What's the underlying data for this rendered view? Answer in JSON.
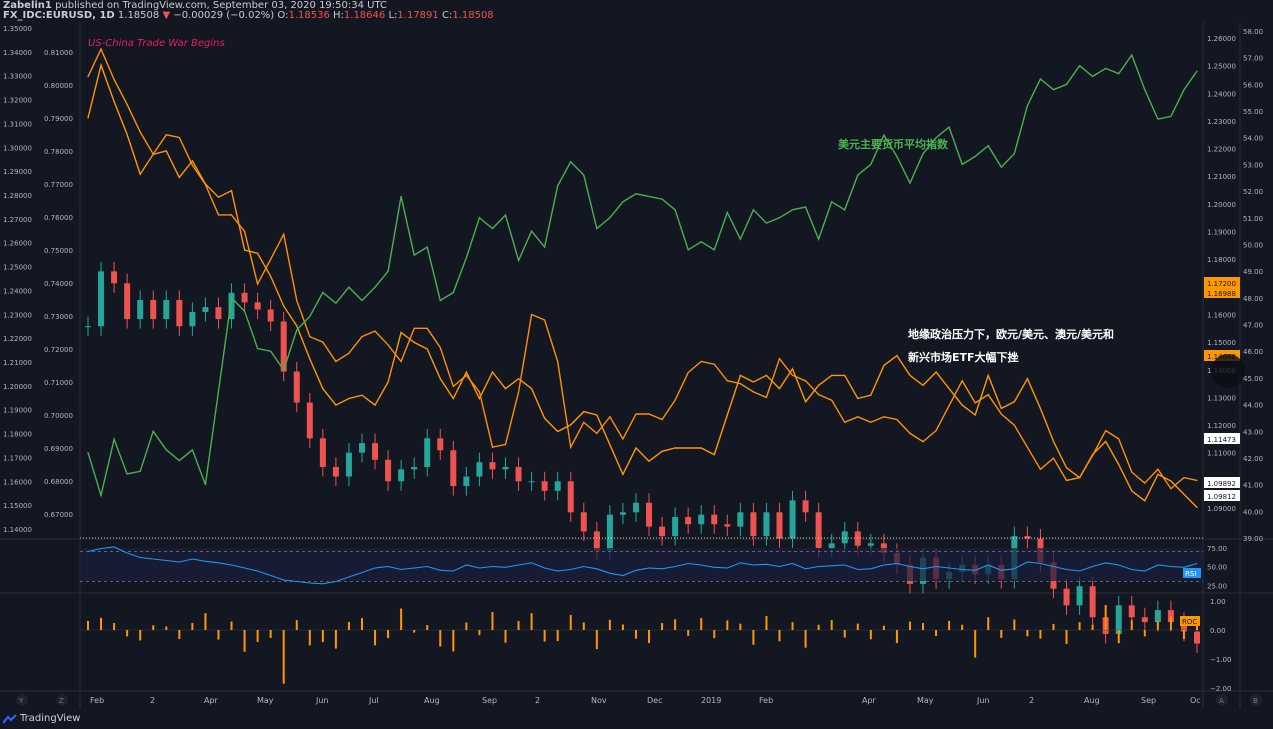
{
  "header": {
    "publisher": "Zabelin1",
    "published_text": "published on TradingView.com, September 03, 2020 19:50:34 UTC",
    "symbol": "FX_IDC:EURUSD, 1D",
    "last": "1.18508",
    "change": "−0.00029 (−0.02%)",
    "o_label": "O:",
    "o": "1.18536",
    "h_label": "H:",
    "h": "1.18646",
    "l_label": "L:",
    "l": "1.17891",
    "c_label": "C:",
    "c": "1.18508"
  },
  "footer": {
    "brand": "TradingView",
    "left_buttons": [
      "Y",
      "Z"
    ],
    "right_buttons": [
      "A",
      "B"
    ]
  },
  "colors": {
    "background": "#131722",
    "up": "#26a69a",
    "down": "#ef5350",
    "dxy": "#4caf50",
    "orange": "#ff9800",
    "rsi": "#2196f3",
    "roc": "#ff9800",
    "annotation_red": "#e91e63",
    "annotation_green": "#4caf50"
  },
  "annotations": {
    "trade_war": "US-China Trade War Begins",
    "dxy_label": "美元主要货币平均指数",
    "pressure_line1": "地缘政治压力下，欧元/美元、澳元/美元和",
    "pressure_line2": "新兴市场ETF大幅下挫"
  },
  "chart_data": [
    {
      "type": "line",
      "title": "",
      "left_axis_1_ticks": [
        "1.35000",
        "1.34000",
        "1.33000",
        "1.32000",
        "1.31000",
        "1.30000",
        "1.29000",
        "1.28000",
        "1.27000",
        "1.26000",
        "1.25000",
        "1.24000",
        "1.23000",
        "1.22000",
        "1.21000",
        "1.20000",
        "1.19000",
        "1.18000",
        "1.17000",
        "1.16000",
        "1.15000",
        "1.14000"
      ],
      "left_axis_2_ticks": [
        "0.81000",
        "0.80000",
        "0.79000",
        "0.78000",
        "0.77000",
        "0.76000",
        "0.75000",
        "0.74000",
        "0.73000",
        "0.72000",
        "0.71000",
        "0.70000",
        "0.69000",
        "0.68000",
        "0.67000"
      ],
      "right_axis_1_ticks": [
        "1.26000",
        "1.25000",
        "1.24000",
        "1.23000",
        "1.22000",
        "1.21000",
        "1.20000",
        "1.19000",
        "1.18000",
        "1.17000",
        "1.16000",
        "1.15000",
        "1.14000",
        "1.13000",
        "1.12000",
        "1.11000",
        "1.10000",
        "1.09000"
      ],
      "right_axis_2_ticks": [
        "58.00",
        "57.00",
        "56.00",
        "55.00",
        "54.00",
        "53.00",
        "52.00",
        "51.00",
        "50.00",
        "49.00",
        "48.00",
        "47.00",
        "46.00",
        "45.00",
        "44.00",
        "43.00",
        "42.00",
        "41.00",
        "40.00",
        "39.00"
      ],
      "price_labels": [
        "1.17200",
        "1.16988",
        "1.14648",
        "1.11473",
        "1.09892",
        "1.09812"
      ],
      "x_tick_labels": [
        "Feb",
        "2",
        "Apr",
        "May",
        "Jun",
        "Jul",
        "Aug",
        "Sep",
        "2",
        "Nov",
        "Dec",
        "2019",
        "Feb",
        "Apr",
        "May",
        "Jun",
        "2",
        "Aug",
        "Sep",
        "Oc"
      ],
      "series": [
        {
          "name": "EURUSD",
          "style": "candles",
          "axis": "left 1.14–1.35",
          "points": [
            1.225,
            1.248,
            1.243,
            1.228,
            1.236,
            1.228,
            1.236,
            1.225,
            1.231,
            1.233,
            1.228,
            1.239,
            1.235,
            1.232,
            1.227,
            1.206,
            1.193,
            1.178,
            1.166,
            1.162,
            1.172,
            1.176,
            1.169,
            1.16,
            1.165,
            1.166,
            1.178,
            1.173,
            1.158,
            1.162,
            1.168,
            1.165,
            1.166,
            1.16,
            1.16,
            1.156,
            1.16,
            1.147,
            1.139,
            1.131,
            1.146,
            1.147,
            1.151,
            1.141,
            1.137,
            1.145,
            1.142,
            1.146,
            1.142,
            1.141,
            1.147,
            1.137,
            1.147,
            1.136,
            1.152,
            1.147,
            1.132,
            1.134,
            1.139,
            1.133,
            1.134,
            1.13,
            1.125,
            1.117,
            1.128,
            1.119,
            1.122,
            1.125,
            1.121,
            1.125,
            1.119,
            1.137,
            1.136,
            1.126,
            1.115,
            1.108,
            1.116,
            1.103,
            1.096,
            1.108,
            1.103,
            1.101,
            1.106,
            1.101,
            1.097,
            1.092
          ]
        },
        {
          "name": "",
          "style": "line",
          "color": "orange",
          "axis": "left 0.67–0.81",
          "points": [
            0.79,
            0.806,
            0.795,
            0.785,
            0.773,
            0.779,
            0.78,
            0.772,
            0.777,
            0.77,
            0.766,
            0.768,
            0.75,
            0.749,
            0.742,
            0.733,
            0.727,
            0.717,
            0.708,
            0.703,
            0.705,
            0.706,
            0.703,
            0.71,
            0.725,
            0.722,
            0.72,
            0.711,
            0.705,
            0.713,
            0.705,
            0.713,
            0.708,
            0.711,
            0.708,
            0.699,
            0.695,
            0.697,
            0.701,
            0.7,
            0.691,
            0.682,
            0.69,
            0.686,
            0.689,
            0.69,
            0.69,
            0.69,
            0.688,
            0.7,
            0.712,
            0.71,
            0.712,
            0.708,
            0.714,
            0.704,
            0.709,
            0.712,
            0.712,
            0.705,
            0.706,
            0.715,
            0.718,
            0.712,
            0.709,
            0.713,
            0.708,
            0.703,
            0.7,
            0.712,
            0.702,
            0.704,
            0.711,
            0.702,
            0.692,
            0.684,
            0.681,
            0.688,
            0.692,
            0.685,
            0.677,
            0.674,
            0.682,
            0.68,
            0.676,
            0.672
          ]
        },
        {
          "name": "",
          "style": "line",
          "color": "orange",
          "axis": "right 1.09–1.26",
          "points": [
            1.246,
            1.256,
            1.245,
            1.236,
            1.226,
            1.218,
            1.225,
            1.224,
            1.214,
            1.207,
            1.196,
            1.196,
            1.19,
            1.171,
            1.18,
            1.189,
            1.165,
            1.152,
            1.15,
            1.143,
            1.146,
            1.152,
            1.154,
            1.149,
            1.143,
            1.155,
            1.155,
            1.148,
            1.134,
            1.138,
            1.132,
            1.112,
            1.113,
            1.132,
            1.16,
            1.158,
            1.143,
            1.112,
            1.121,
            1.117,
            1.123,
            1.115,
            1.124,
            1.124,
            1.122,
            1.129,
            1.139,
            1.143,
            1.142,
            1.136,
            1.135,
            1.132,
            1.13,
            1.144,
            1.138,
            1.136,
            1.131,
            1.129,
            1.121,
            1.123,
            1.121,
            1.123,
            1.122,
            1.117,
            1.114,
            1.118,
            1.127,
            1.136,
            1.128,
            1.131,
            1.124,
            1.12,
            1.112,
            1.104,
            1.108,
            1.1,
            1.101,
            1.109,
            1.118,
            1.115,
            1.103,
            1.099,
            1.104,
            1.097,
            1.101,
            1.1
          ]
        },
        {
          "name": "",
          "style": "line",
          "color": "green",
          "axis": "right 39–58",
          "points": [
            42.2,
            40.6,
            42.7,
            41.4,
            41.5,
            43.0,
            42.3,
            41.9,
            42.3,
            41.0,
            44.5,
            48.0,
            47.5,
            46.1,
            46.0,
            45.3,
            46.8,
            47.3,
            48.2,
            47.8,
            48.4,
            47.9,
            48.4,
            49.0,
            51.8,
            49.6,
            49.9,
            47.9,
            48.2,
            49.5,
            51.0,
            50.6,
            51.1,
            49.4,
            50.5,
            49.9,
            52.2,
            53.1,
            52.6,
            50.6,
            51.0,
            51.6,
            51.9,
            51.8,
            51.7,
            51.3,
            49.8,
            50.1,
            49.8,
            51.2,
            50.2,
            51.3,
            50.8,
            51.0,
            51.3,
            51.4,
            50.2,
            51.6,
            51.3,
            52.6,
            53.0,
            54.1,
            53.3,
            52.3,
            53.4,
            54.0,
            54.4,
            53.0,
            53.3,
            53.7,
            52.9,
            53.4,
            55.2,
            56.2,
            55.8,
            56.0,
            56.7,
            56.3,
            56.6,
            56.4,
            57.1,
            55.8,
            54.7,
            54.8,
            55.8,
            56.5
          ]
        },
        {
          "name": "RSI",
          "panel": "rsi",
          "axis_ticks": [
            "75.00",
            "50.00",
            "25.00"
          ],
          "band": [
            30,
            70
          ],
          "points": [
            70,
            74,
            76,
            68,
            62,
            60,
            58,
            56,
            60,
            57,
            55,
            52,
            48,
            44,
            38,
            32,
            30,
            28,
            27,
            30,
            36,
            42,
            48,
            50,
            46,
            48,
            50,
            45,
            44,
            52,
            48,
            50,
            49,
            52,
            55,
            48,
            44,
            46,
            50,
            47,
            41,
            38,
            45,
            48,
            47,
            50,
            54,
            52,
            49,
            48,
            55,
            52,
            53,
            50,
            54,
            47,
            50,
            51,
            52,
            46,
            47,
            52,
            54,
            50,
            47,
            50,
            48,
            46,
            45,
            52,
            45,
            47,
            56,
            54,
            50,
            46,
            44,
            50,
            55,
            52,
            46,
            44,
            52,
            50,
            49,
            54
          ]
        },
        {
          "name": "ROC",
          "panel": "roc",
          "axis_ticks": [
            "1.00",
            "0.00",
            "−1.00",
            "−2.00"
          ],
          "points": [
            0.31,
            0.42,
            0.24,
            -0.22,
            -0.36,
            0.16,
            0.12,
            -0.31,
            0.24,
            0.58,
            -0.33,
            0.29,
            -0.75,
            -0.41,
            -0.27,
            -1.85,
            0.34,
            -0.53,
            -0.42,
            -0.64,
            0.28,
            0.41,
            -0.53,
            -0.28,
            0.74,
            -0.09,
            0.17,
            -0.57,
            -0.74,
            0.26,
            -0.18,
            0.62,
            -0.44,
            0.31,
            0.58,
            -0.4,
            -0.38,
            0.52,
            0.26,
            -0.66,
            0.35,
            0.19,
            -0.3,
            -0.45,
            0.24,
            0.37,
            -0.2,
            0.41,
            -0.28,
            0.33,
            0.22,
            -0.51,
            0.48,
            -0.39,
            0.27,
            -0.61,
            0.18,
            0.34,
            -0.26,
            0.22,
            -0.32,
            0.15,
            -0.45,
            0.29,
            0.24,
            -0.21,
            0.31,
            0.18,
            -0.95,
            0.44,
            -0.27,
            0.36,
            -0.22,
            -0.3,
            0.21,
            -0.48,
            0.27,
            0.18,
            0.86,
            -0.45,
            0.34,
            -0.22,
            0.31,
            0.47,
            -0.31,
            0.24
          ]
        }
      ]
    }
  ]
}
